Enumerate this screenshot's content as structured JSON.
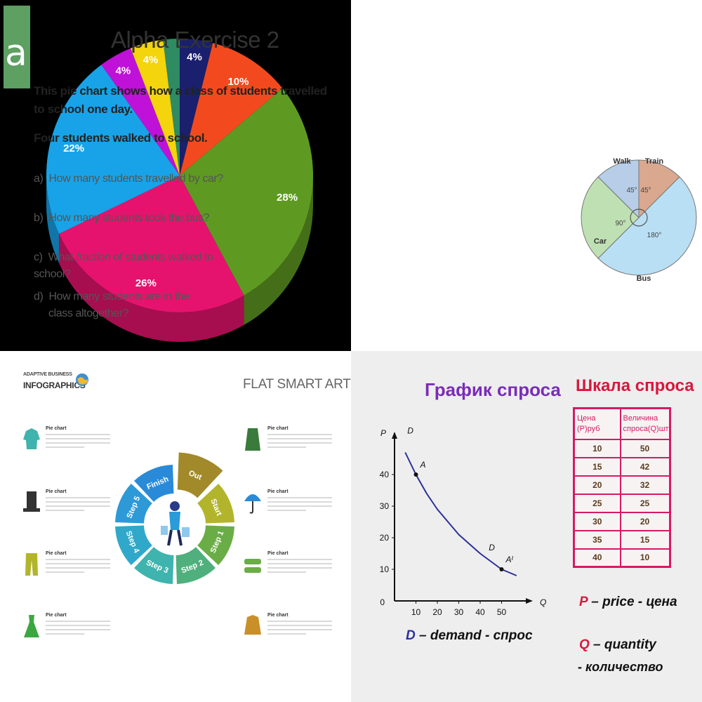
{
  "chart_data": [
    {
      "type": "pie",
      "slices": [
        {
          "label": "4%",
          "value": 4,
          "color": "#1a1f6e"
        },
        {
          "label": "10%",
          "value": 10,
          "color": "#f24a1e"
        },
        {
          "label": "28%",
          "value": 28,
          "color": "#5e9a22"
        },
        {
          "label": "26%",
          "value": 26,
          "color": "#e6136e"
        },
        {
          "label": "22%",
          "value": 22,
          "color": "#18a3e8"
        },
        {
          "label": "4%",
          "value": 4,
          "color": "#bf11d8"
        },
        {
          "label": "4%",
          "value": 4,
          "color": "#f4d40c"
        },
        {
          "label": "",
          "value": 2,
          "color": "#2e8b62"
        }
      ]
    },
    {
      "type": "pie",
      "slices": [
        {
          "label": "Walk",
          "angle_label": "45°",
          "value": 45,
          "color": "#b7cde8"
        },
        {
          "label": "Train",
          "angle_label": "45°",
          "value": 45,
          "color": "#d9a88e"
        },
        {
          "label": "Bus",
          "angle_label": "180°",
          "value": 180,
          "color": "#b9dff4"
        },
        {
          "label": "Car",
          "angle_label": "90°",
          "value": 90,
          "color": "#bfe0b3"
        }
      ]
    },
    {
      "type": "pie",
      "slices": [
        {
          "label": "Out",
          "value": 1,
          "color": "#a28a2a"
        },
        {
          "label": "Start",
          "value": 1,
          "color": "#b2b52c"
        },
        {
          "label": "Step 1",
          "value": 1,
          "color": "#6aad46"
        },
        {
          "label": "Step 2",
          "value": 1,
          "color": "#4fb07d"
        },
        {
          "label": "Step 3",
          "value": 1,
          "color": "#3fb3ad"
        },
        {
          "label": "Step 4",
          "value": 1,
          "color": "#30a8c9"
        },
        {
          "label": "Step 5",
          "value": 1,
          "color": "#2d99d7"
        },
        {
          "label": "Finish",
          "value": 1,
          "color": "#2a8ad8"
        }
      ]
    },
    {
      "type": "line",
      "title": "График спроса",
      "xlabel": "Q",
      "ylabel": "P",
      "xlim": [
        0,
        60
      ],
      "ylim": [
        0,
        50
      ],
      "x_ticks": [
        10,
        20,
        30,
        40,
        50
      ],
      "y_ticks": [
        10,
        20,
        30,
        40
      ],
      "origin_label": "0",
      "series": [
        {
          "name": "D",
          "x": [
            5,
            10,
            15,
            20,
            25,
            30,
            35,
            40,
            50,
            57
          ],
          "y": [
            47,
            40,
            34,
            29,
            25,
            21,
            18,
            15,
            10,
            8
          ]
        }
      ],
      "points": [
        {
          "label": "A",
          "x": 10,
          "y": 40
        },
        {
          "label": "Aᴵ",
          "x": 50,
          "y": 10
        }
      ],
      "curve_labels": [
        {
          "label": "D",
          "x": 6,
          "y": 53
        },
        {
          "label": "D",
          "x": 44,
          "y": 16
        }
      ],
      "caption": {
        "letter": "D",
        "text": " – demand - спрос"
      }
    },
    {
      "type": "table",
      "title": "Шкала спроса",
      "columns": [
        "Цена (P)руб",
        "Величина спроса(Q)шт"
      ],
      "rows": [
        [
          10,
          50
        ],
        [
          15,
          42
        ],
        [
          20,
          32
        ],
        [
          25,
          25
        ],
        [
          30,
          20
        ],
        [
          35,
          15
        ],
        [
          40,
          10
        ]
      ]
    }
  ],
  "exercise": {
    "logo_letter": "a",
    "title": "Alpha Exercise 2",
    "intro": "This pie chart shows how a class of students travelled to school one day.",
    "given": "Four students walked to school.",
    "questions": [
      {
        "id": "a)",
        "before": "How many students travelled by car?",
        "em": "",
        "after": ""
      },
      {
        "id": "b)",
        "before": "How many students took the bus?",
        "em": "",
        "after": ""
      },
      {
        "id": "c)",
        "before": "What ",
        "em": "fraction",
        "after": " of students walked to school?"
      },
      {
        "id": "d)",
        "before": "How many students are in the class altogether?",
        "em": "",
        "after": ""
      }
    ]
  },
  "infographic": {
    "brand_top": "ADAPTIVE BUSINESS",
    "brand_main": "INFOGRAPHICS",
    "heading": "FLAT SMART ART",
    "item_title": "Pie chart",
    "left_icons": [
      "sweater-icon",
      "top-hat-icon",
      "trousers-icon",
      "dress-icon"
    ],
    "right_icons": [
      "coat-icon",
      "umbrella-icon",
      "sneakers-icon",
      "jacket-icon"
    ]
  },
  "legend": {
    "p_letter": "P",
    "p_text": " – price - цена",
    "q_letter": "Q",
    "q_text": " – quantity",
    "q_text2": "- количество"
  }
}
